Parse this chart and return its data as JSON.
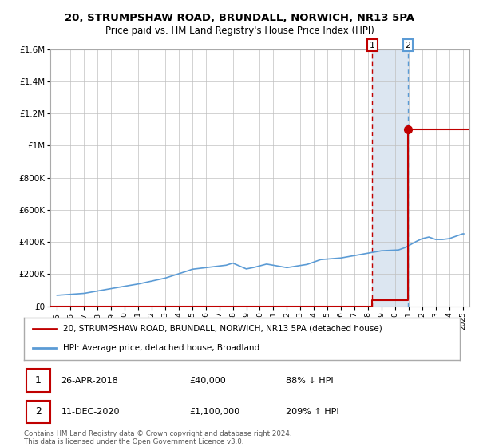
{
  "title": "20, STRUMPSHAW ROAD, BRUNDALL, NORWICH, NR13 5PA",
  "subtitle": "Price paid vs. HM Land Registry's House Price Index (HPI)",
  "legend_line1": "20, STRUMPSHAW ROAD, BRUNDALL, NORWICH, NR13 5PA (detached house)",
  "legend_line2": "HPI: Average price, detached house, Broadland",
  "footnote1": "Contains HM Land Registry data © Crown copyright and database right 2024.",
  "footnote2": "This data is licensed under the Open Government Licence v3.0.",
  "sale1_date": "26-APR-2018",
  "sale1_price": "£40,000",
  "sale1_hpi": "88% ↓ HPI",
  "sale2_date": "11-DEC-2020",
  "sale2_price": "£1,100,000",
  "sale2_hpi": "209% ↑ HPI",
  "sale1_year": 2018.32,
  "sale1_value": 40000,
  "sale2_year": 2020.95,
  "sale2_value": 1100000,
  "hpi_color": "#5b9bd5",
  "price_color": "#c00000",
  "shade_color": "#dce6f1",
  "grid_color": "#c0c0c0",
  "bg_color": "#ffffff",
  "ylim": [
    0,
    1600000
  ],
  "xlim": [
    1994.5,
    2025.5
  ],
  "yticks": [
    0,
    200000,
    400000,
    600000,
    800000,
    1000000,
    1200000,
    1400000,
    1600000
  ],
  "ytick_labels": [
    "£0",
    "£200K",
    "£400K",
    "£600K",
    "£800K",
    "£1M",
    "£1.2M",
    "£1.4M",
    "£1.6M"
  ],
  "xticks": [
    1995,
    1996,
    1997,
    1998,
    1999,
    2000,
    2001,
    2002,
    2003,
    2004,
    2005,
    2006,
    2007,
    2008,
    2009,
    2010,
    2011,
    2012,
    2013,
    2014,
    2015,
    2016,
    2017,
    2018,
    2019,
    2020,
    2021,
    2022,
    2023,
    2024,
    2025
  ],
  "price_steps_x": [
    1994.5,
    2018.32,
    2018.32,
    2020.95,
    2020.95,
    2025.5
  ],
  "price_steps_y": [
    0,
    0,
    40000,
    40000,
    1100000,
    1100000
  ]
}
